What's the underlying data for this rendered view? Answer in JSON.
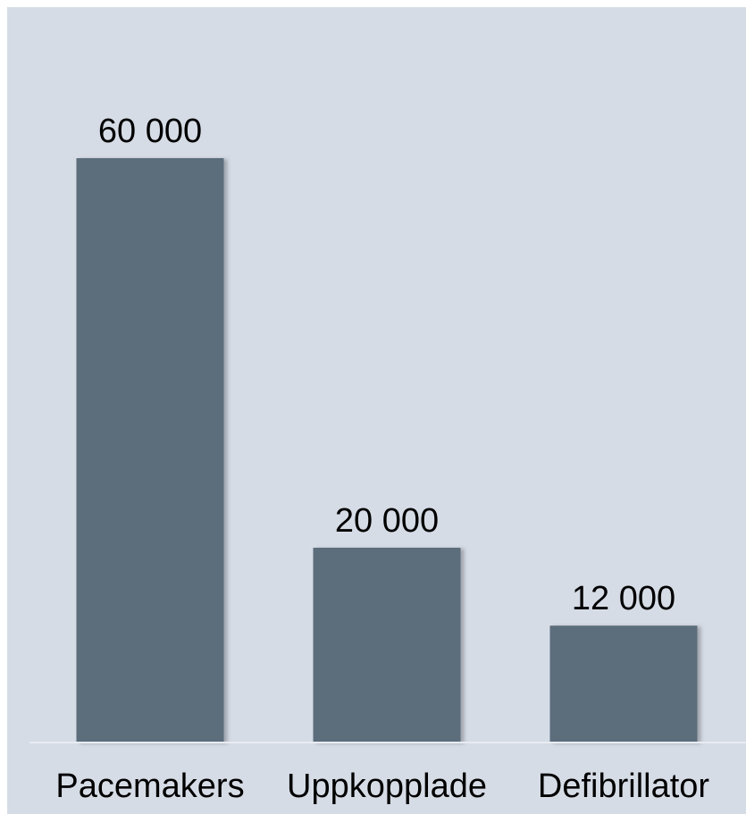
{
  "chart_data": {
    "type": "bar",
    "categories": [
      "Pacemakers",
      "Uppkopplade",
      "Defibrillator"
    ],
    "values": [
      60000,
      20000,
      12000
    ],
    "value_labels": [
      "60 000",
      "20 000",
      "12 000"
    ],
    "title": "",
    "xlabel": "",
    "ylabel": "",
    "ylim": [
      0,
      60000
    ],
    "grid": false,
    "legend": "none",
    "colors": {
      "bar": "#5b6d7c",
      "background": "#d6dce6",
      "baseline": "#e8ecf2"
    }
  }
}
